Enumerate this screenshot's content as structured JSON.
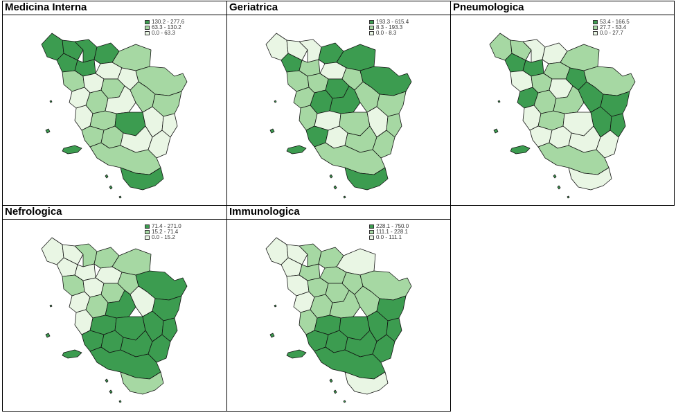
{
  "colors": {
    "high": "#3c9c50",
    "mid": "#a6d8a3",
    "low": "#e9f6e4",
    "border": "#111111"
  },
  "panels": [
    {
      "title": "Medicina Interna",
      "legend": [
        "130.2 - 277.6",
        "63.3 - 130.2",
        "0.0 - 63.3"
      ],
      "classes": [
        "high",
        "high",
        "high",
        "high",
        "high",
        "high",
        "mid",
        "low",
        "mid",
        "low",
        "mid",
        "low",
        "mid",
        "low",
        "mid",
        "low",
        "mid",
        "mid",
        "low",
        "mid",
        "high",
        "low",
        "low",
        "mid",
        "mid",
        "low",
        "low",
        "mid",
        "high"
      ]
    },
    {
      "title": "Geriatrica",
      "legend": [
        "193.3 - 615.4",
        "8.3 - 193.3",
        "0.0 - 8.3"
      ],
      "classes": [
        "low",
        "low",
        "low",
        "high",
        "mid",
        "high",
        "high",
        "low",
        "mid",
        "mid",
        "high",
        "mid",
        "high",
        "mid",
        "high",
        "high",
        "mid",
        "mid",
        "mid",
        "low",
        "mid",
        "low",
        "mid",
        "high",
        "low",
        "mid",
        "mid",
        "mid",
        "high"
      ]
    },
    {
      "title": "Pneumologica",
      "legend": [
        "53.4 - 166.5",
        "27.7 - 53.4",
        "0.0 - 27.7"
      ],
      "classes": [
        "mid",
        "mid",
        "low",
        "high",
        "high",
        "low",
        "mid",
        "mid",
        "low",
        "mid",
        "low",
        "high",
        "mid",
        "high",
        "mid",
        "mid",
        "high",
        "high",
        "low",
        "mid",
        "low",
        "high",
        "high",
        "low",
        "low",
        "low",
        "low",
        "mid",
        "low"
      ]
    },
    {
      "title": "Nefrologica",
      "legend": [
        "71.4 - 271.0",
        "15.2 - 71.4",
        "0.0 - 15.2"
      ],
      "classes": [
        "low",
        "low",
        "mid",
        "low",
        "low",
        "mid",
        "mid",
        "low",
        "mid",
        "low",
        "mid",
        "mid",
        "high",
        "low",
        "mid",
        "high",
        "low",
        "high",
        "low",
        "high",
        "high",
        "high",
        "high",
        "high",
        "high",
        "high",
        "high",
        "high",
        "mid"
      ]
    },
    {
      "title": "Immunologica",
      "legend": [
        "228.1 - 750.0",
        "111.1 - 228.1",
        "0.0 - 111.1"
      ],
      "classes": [
        "low",
        "low",
        "mid",
        "low",
        "mid",
        "mid",
        "low",
        "mid",
        "low",
        "mid",
        "mid",
        "mid",
        "mid",
        "low",
        "mid",
        "mid",
        "mid",
        "high",
        "mid",
        "high",
        "high",
        "high",
        "high",
        "high",
        "high",
        "high",
        "high",
        "high",
        "low"
      ]
    }
  ]
}
